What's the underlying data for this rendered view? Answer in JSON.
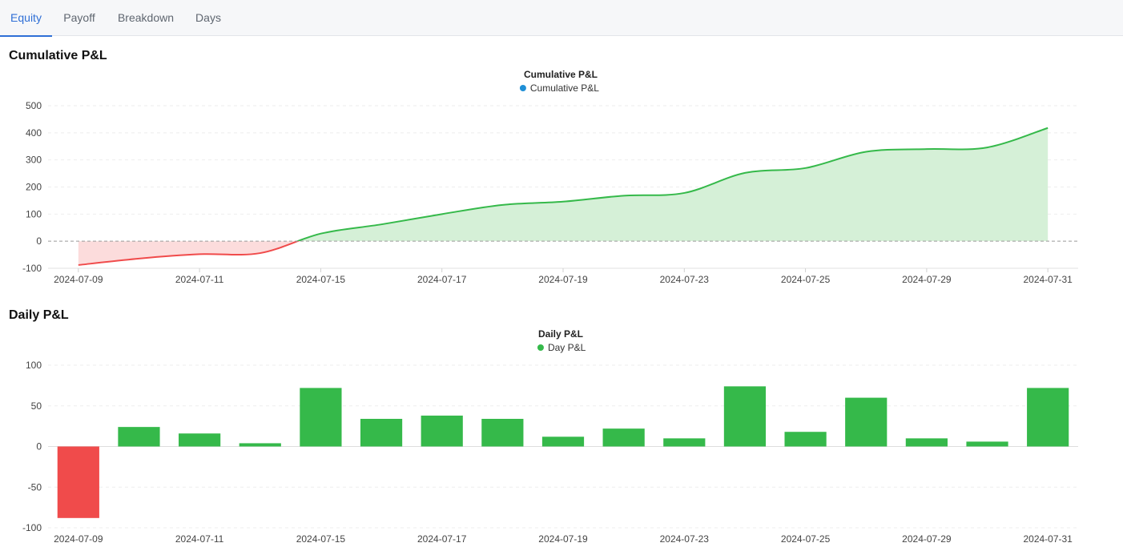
{
  "tabs": [
    {
      "label": "Equity",
      "active": true
    },
    {
      "label": "Payoff",
      "active": false
    },
    {
      "label": "Breakdown",
      "active": false
    },
    {
      "label": "Days",
      "active": false
    }
  ],
  "sections": {
    "cumulative_heading": "Cumulative P&L",
    "daily_heading": "Daily P&L"
  },
  "colors": {
    "positive": "#35b94a",
    "positive_fill": "#d5f0d7",
    "negative": "#f04b4b",
    "negative_fill": "#fcdcdc",
    "legend_cumulative": "#1f8fd6",
    "accent": "#2f6fd6"
  },
  "chart_data": [
    {
      "type": "area",
      "title": "Cumulative P&L",
      "legend": [
        "Cumulative P&L"
      ],
      "legend_position": "top-center",
      "x": [
        "2024-07-09",
        "2024-07-10",
        "2024-07-11",
        "2024-07-12",
        "2024-07-15",
        "2024-07-16",
        "2024-07-17",
        "2024-07-18",
        "2024-07-19",
        "2024-07-22",
        "2024-07-23",
        "2024-07-24",
        "2024-07-25",
        "2024-07-26",
        "2024-07-29",
        "2024-07-30",
        "2024-07-31"
      ],
      "x_tick_labels": [
        "2024-07-09",
        "2024-07-11",
        "2024-07-15",
        "2024-07-17",
        "2024-07-19",
        "2024-07-23",
        "2024-07-25",
        "2024-07-29",
        "2024-07-31"
      ],
      "series": [
        {
          "name": "Cumulative P&L",
          "values": [
            -88,
            -64,
            -48,
            -44,
            28,
            62,
            100,
            134,
            146,
            168,
            178,
            252,
            270,
            330,
            340,
            346,
            418
          ]
        }
      ],
      "ylim": [
        -100,
        500
      ],
      "yticks": [
        -100,
        0,
        100,
        200,
        300,
        400,
        500
      ],
      "grid": true
    },
    {
      "type": "bar",
      "title": "Daily P&L",
      "legend": [
        "Day P&L"
      ],
      "legend_position": "top-center",
      "categories": [
        "2024-07-09",
        "2024-07-10",
        "2024-07-11",
        "2024-07-12",
        "2024-07-15",
        "2024-07-16",
        "2024-07-17",
        "2024-07-18",
        "2024-07-19",
        "2024-07-22",
        "2024-07-23",
        "2024-07-24",
        "2024-07-25",
        "2024-07-26",
        "2024-07-29",
        "2024-07-30",
        "2024-07-31"
      ],
      "x_tick_labels": [
        "2024-07-09",
        "2024-07-11",
        "2024-07-15",
        "2024-07-17",
        "2024-07-19",
        "2024-07-23",
        "2024-07-25",
        "2024-07-29",
        "2024-07-31"
      ],
      "series": [
        {
          "name": "Day P&L",
          "values": [
            -88,
            24,
            16,
            4,
            72,
            34,
            38,
            34,
            12,
            22,
            10,
            74,
            18,
            60,
            10,
            6,
            72
          ]
        }
      ],
      "ylim": [
        -100,
        100
      ],
      "yticks": [
        -100,
        -50,
        0,
        50,
        100
      ],
      "grid": true
    }
  ]
}
